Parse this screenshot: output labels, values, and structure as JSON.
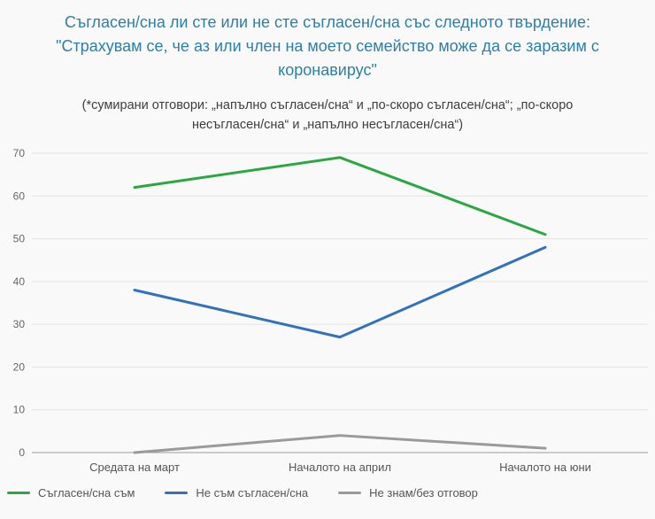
{
  "title": "Съгласен/сна ли сте или не сте съгласен/сна със следното твърдение: \"Страхувам се, че аз или член на моето семейство може да се заразим с коронавирус\"",
  "subtitle": "(*сумирани отговори: „напълно съгласен/сна“ и „по-скоро съгласен/сна“; „по-скоро несъгласен/сна“ и „напълно несъгласен/сна“)",
  "chart_data": {
    "type": "line",
    "categories": [
      "Средата на март",
      "Началото на април",
      "Началото на юни"
    ],
    "series": [
      {
        "name": "Съгласен/сна съм",
        "color": "#2aa742",
        "values": [
          62,
          69,
          51
        ]
      },
      {
        "name": "Не съм съгласен/сна",
        "color": "#3272bd",
        "values": [
          38,
          27,
          48
        ]
      },
      {
        "name": "Не знам/без отговор",
        "color": "#9a9a9a",
        "values": [
          0,
          4,
          1
        ]
      }
    ],
    "ylim": [
      0,
      70
    ],
    "ytick_step": 10,
    "grid": true,
    "legend_position": "bottom",
    "xlabel": "",
    "ylabel": ""
  },
  "colors": {
    "title": "#2e7fa6",
    "subtitle": "#3d3d3d",
    "gridline": "#e4e4e4",
    "axis_line": "#9a9a9a",
    "tick_label": "#666666",
    "x_label": "#555555",
    "background": "#f9f9f9"
  }
}
